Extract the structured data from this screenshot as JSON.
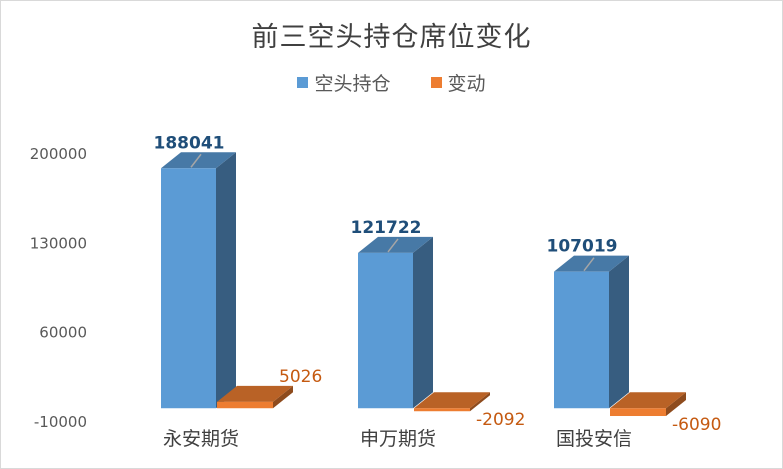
{
  "chart_data": {
    "type": "bar",
    "title": "前三空头持仓席位变化",
    "categories": [
      "永安期货",
      "申万期货",
      "国投安信"
    ],
    "series": [
      {
        "name": "空头持仓",
        "values": [
          188041,
          121722,
          107019
        ],
        "color": "#5b9bd5"
      },
      {
        "name": "变动",
        "values": [
          5026,
          -2092,
          -6090
        ],
        "color": "#ed7d31"
      }
    ],
    "yticks": [
      -10000,
      60000,
      130000,
      200000
    ],
    "ylim": [
      -10000,
      200000
    ],
    "legend": "top-center",
    "grid": false,
    "style": "3d-column"
  }
}
